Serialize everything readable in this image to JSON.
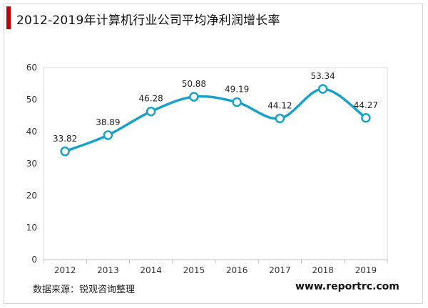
{
  "title": "2012-2019年计算机行业公司平均净利润增长率",
  "source_text": "数据来源：锐观咨询整理",
  "website": "www.reportrc.com",
  "colors": {
    "title_bar": "#c00000",
    "line": "#1aa1c7",
    "marker_fill": "#ffffff",
    "axis_line": "#bfbfbf",
    "plot_border": "#d9d9d9",
    "tick_text": "#333333"
  },
  "chart_data": {
    "type": "line",
    "categories": [
      "2012",
      "2013",
      "2014",
      "2015",
      "2016",
      "2017",
      "2018",
      "2019"
    ],
    "values": [
      33.82,
      38.89,
      46.28,
      50.88,
      49.19,
      44.12,
      53.34,
      44.27
    ],
    "data_labels": [
      "33.82",
      "38.89",
      "46.28",
      "50.88",
      "49.19",
      "44.12",
      "53.34",
      "44.27"
    ],
    "ylim": [
      0,
      60
    ],
    "yticks": [
      "0",
      "10",
      "20",
      "30",
      "40",
      "50",
      "60"
    ],
    "grid": false,
    "smooth": true,
    "markers": "hollow-circle"
  }
}
